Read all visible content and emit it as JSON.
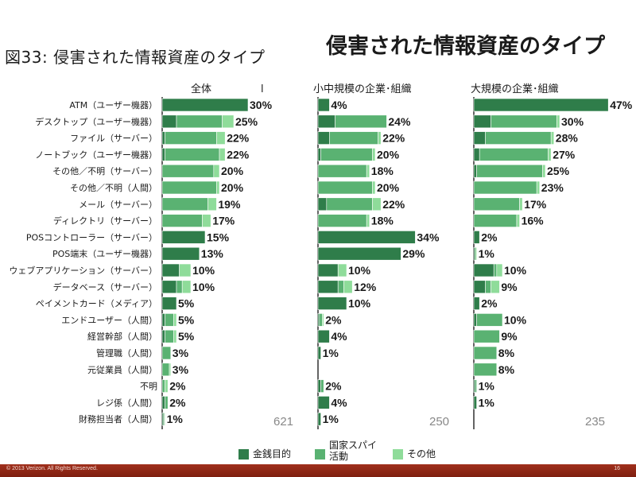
{
  "page": {
    "figure_label": "図33: 侵害された情報資産のタイプ",
    "title": "侵害された情報資産のタイプ",
    "copyright": "© 2013 Verizon. All Rights Reserved.",
    "page_number": "16"
  },
  "colors": {
    "financial": "#2f7d4a",
    "espionage": "#5ab272",
    "other": "#8fdc9a",
    "axis": "#222222",
    "total_text": "#888888"
  },
  "chart_data": {
    "type": "bar",
    "stacked": true,
    "orientation": "horizontal",
    "categories": [
      "ATM（ユーザー機器）",
      "デスクトップ（ユーザー機器）",
      "ファイル（サーバー）",
      "ノートブック（ユーザー機器）",
      "その他／不明（サーバー）",
      "その他／不明（人間）",
      "メール（サーバー）",
      "ディレクトリ（サーバー）",
      "POSコントローラー（サーバー）",
      "POS端末（ユーザー機器）",
      "ウェブアプリケーション（サーバー）",
      "データベース（サーバー）",
      "ペイメントカード（メディア）",
      "エンドユーザー（人間）",
      "経営幹部（人間）",
      "管理職（人間）",
      "元従業員（人間）",
      "不明",
      "レジ係（人間）",
      "財務担当者（人間）"
    ],
    "legend": [
      {
        "key": "financial",
        "label_lines": [
          "金銭目的"
        ]
      },
      {
        "key": "espionage",
        "label_lines": [
          "国家スパイ",
          "活動"
        ]
      },
      {
        "key": "other",
        "label_lines": [
          "その他"
        ]
      }
    ],
    "panels": [
      {
        "title": "全体",
        "title_mark": "l",
        "total": "621",
        "labels": [
          "30%",
          "25%",
          "22%",
          "22%",
          "20%",
          "20%",
          "19%",
          "17%",
          "15%",
          "13%",
          "10%",
          "10%",
          "5%",
          "5%",
          "5%",
          "3%",
          "3%",
          "2%",
          "2%",
          "1%"
        ],
        "series": [
          {
            "name": "金銭目的",
            "values": [
              30,
              5,
              1,
              1,
              0,
              0,
              0,
              0,
              15,
              13,
              6,
              5,
              5,
              1,
              1,
              0,
              0,
              0,
              1,
              0.5
            ]
          },
          {
            "name": "国家スパイ活動",
            "values": [
              0,
              16,
              18,
              19,
              18,
              19,
              16,
              14,
              0,
              0,
              0,
              2,
              0,
              3,
              3,
              3,
              2.5,
              1,
              1,
              0.3
            ]
          },
          {
            "name": "その他",
            "values": [
              0,
              4,
              3,
              2,
              2,
              1,
              3,
              3,
              0,
              0,
              4,
              3,
              0,
              1,
              1,
              0,
              0.5,
              1,
              0,
              0.2
            ]
          }
        ]
      },
      {
        "title": "小中規模の企業･組織",
        "total": "250",
        "labels": [
          "4%",
          "24%",
          "22%",
          "20%",
          "18%",
          "20%",
          "22%",
          "18%",
          "34%",
          "29%",
          "10%",
          "12%",
          "10%",
          "2%",
          "4%",
          "1%",
          "",
          "2%",
          "4%",
          "1%"
        ],
        "series": [
          {
            "name": "金銭目的",
            "values": [
              4,
              6,
              4,
              1,
              0,
              0,
              3,
              0,
              34,
              29,
              7,
              7,
              10,
              0.5,
              4,
              1,
              0,
              1,
              4,
              1
            ]
          },
          {
            "name": "国家スパイ活動",
            "values": [
              0,
              18,
              17,
              18,
              17,
              19,
              16,
              17,
              0,
              0,
              0,
              2,
              0,
              1,
              0,
              0,
              0,
              1,
              0,
              0
            ]
          },
          {
            "name": "その他",
            "values": [
              0,
              0,
              1,
              1,
              1,
              1,
              3,
              1,
              0,
              0,
              3,
              3,
              0,
              0.5,
              0,
              0,
              0,
              0,
              0,
              0
            ]
          }
        ]
      },
      {
        "title": "大規模の企業･組織",
        "total": "235",
        "labels": [
          "47%",
          "30%",
          "28%",
          "27%",
          "25%",
          "23%",
          "17%",
          "16%",
          "2%",
          "1%",
          "10%",
          "9%",
          "2%",
          "10%",
          "9%",
          "8%",
          "8%",
          "1%",
          "1%",
          ""
        ],
        "series": [
          {
            "name": "金銭目的",
            "values": [
              47,
              6,
              4,
              2,
              1,
              0,
              0,
              0,
              2,
              0.5,
              7,
              4,
              2,
              1,
              0,
              0,
              0,
              0.5,
              1,
              0
            ]
          },
          {
            "name": "国家スパイ活動",
            "values": [
              0,
              23,
              23,
              24,
              23,
              22,
              16,
              15,
              0,
              0,
              1,
              2,
              0,
              9,
              9,
              8,
              8,
              0.5,
              0,
              0
            ]
          },
          {
            "name": "その他",
            "values": [
              0,
              1,
              1,
              1,
              1,
              1,
              1,
              1,
              0,
              0.5,
              2,
              3,
              0,
              0,
              0,
              0,
              0,
              0,
              0,
              0
            ]
          }
        ]
      }
    ]
  }
}
